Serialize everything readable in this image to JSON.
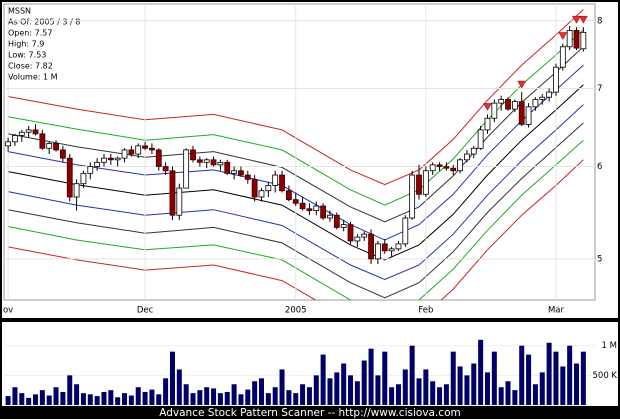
{
  "chart_data": {
    "type": "candlestick",
    "title": "MSSN",
    "info": [
      "As Of: 2005 / 3 / 8",
      "Open: 7.57",
      "High: 7.9",
      "Low: 7.53",
      "Close: 7.82",
      "Volume: 1 M"
    ],
    "footer": "Advance Stock Pattern Scanner -- http://www.cisiova.com",
    "log_scale": true,
    "grid": true,
    "up_color": "#ffffff",
    "down_color": "#8b0000",
    "signal_color": "#e03030",
    "ylim": [
      4.61,
      8.27
    ],
    "yticks": [
      5,
      6,
      7,
      8
    ],
    "xlim": [
      -0.6,
      85.7
    ],
    "xticks": [
      {
        "value": 0,
        "label": "ov"
      },
      {
        "value": 20,
        "label": "Dec"
      },
      {
        "value": 42,
        "label": "2005"
      },
      {
        "value": 61,
        "label": "Feb"
      },
      {
        "value": 80,
        "label": "Mar"
      }
    ],
    "open": [
      6.25,
      6.3,
      6.38,
      6.42,
      6.45,
      6.4,
      6.22,
      6.28,
      6.2,
      6.1,
      5.65,
      5.8,
      5.92,
      6.0,
      6.05,
      6.1,
      6.08,
      6.1,
      6.2,
      6.15,
      6.25,
      6.22,
      6.2,
      6.0,
      5.95,
      5.45,
      5.75,
      6.2,
      6.08,
      6.05,
      6.08,
      6.02,
      6.05,
      5.92,
      5.95,
      5.9,
      5.85,
      5.65,
      5.72,
      5.78,
      5.9,
      5.72,
      5.62,
      5.58,
      5.52,
      5.5,
      5.55,
      5.42,
      5.45,
      5.32,
      5.35,
      5.18,
      5.22,
      5.25,
      5.0,
      5.15,
      5.08,
      5.1,
      5.15,
      5.42,
      5.9,
      5.68,
      5.95,
      6.02,
      6.0,
      5.98,
      5.95,
      6.08,
      6.15,
      6.22,
      6.45,
      6.6,
      6.8,
      6.85,
      6.72,
      6.82,
      6.52,
      6.75,
      6.85,
      6.88,
      6.95,
      7.3,
      7.6,
      7.85,
      7.57
    ],
    "high": [
      6.35,
      6.4,
      6.45,
      6.5,
      6.52,
      6.45,
      6.3,
      6.32,
      6.25,
      6.15,
      5.85,
      5.95,
      6.05,
      6.1,
      6.15,
      6.15,
      6.12,
      6.22,
      6.25,
      6.28,
      6.3,
      6.28,
      6.22,
      6.05,
      6.0,
      5.8,
      6.22,
      6.25,
      6.12,
      6.1,
      6.12,
      6.08,
      6.08,
      6.0,
      6.0,
      5.95,
      5.9,
      5.75,
      5.82,
      5.95,
      5.95,
      5.78,
      5.7,
      5.65,
      5.58,
      5.6,
      5.58,
      5.5,
      5.48,
      5.4,
      5.38,
      5.25,
      5.28,
      5.3,
      5.18,
      5.2,
      5.12,
      5.18,
      5.45,
      5.95,
      6.02,
      6.0,
      6.05,
      6.05,
      6.05,
      6.02,
      6.1,
      6.2,
      6.25,
      6.5,
      6.65,
      6.85,
      6.9,
      6.88,
      6.85,
      6.95,
      6.8,
      6.88,
      6.92,
      7.0,
      7.35,
      7.65,
      7.92,
      7.9,
      7.9
    ],
    "low": [
      6.18,
      6.25,
      6.3,
      6.35,
      6.38,
      6.2,
      6.15,
      6.18,
      6.05,
      5.6,
      5.5,
      5.75,
      5.85,
      5.95,
      6.0,
      6.02,
      6.0,
      6.05,
      6.12,
      6.1,
      6.2,
      6.15,
      5.95,
      5.9,
      5.4,
      5.4,
      5.75,
      6.05,
      6.0,
      5.98,
      6.0,
      5.95,
      5.9,
      5.85,
      5.88,
      5.8,
      5.6,
      5.6,
      5.65,
      5.7,
      5.7,
      5.6,
      5.55,
      5.5,
      5.45,
      5.45,
      5.4,
      5.38,
      5.3,
      5.28,
      5.15,
      5.12,
      5.18,
      4.95,
      4.95,
      5.05,
      5.02,
      5.08,
      5.12,
      5.4,
      5.62,
      5.65,
      5.9,
      5.95,
      5.95,
      5.9,
      5.92,
      6.05,
      6.1,
      6.2,
      6.4,
      6.55,
      6.7,
      6.7,
      6.68,
      6.5,
      6.48,
      6.7,
      6.78,
      6.82,
      6.9,
      7.25,
      7.55,
      7.55,
      7.53
    ],
    "close": [
      6.3,
      6.38,
      6.42,
      6.45,
      6.4,
      6.22,
      6.28,
      6.2,
      6.1,
      5.65,
      5.8,
      5.92,
      6.0,
      6.05,
      6.1,
      6.08,
      6.1,
      6.2,
      6.15,
      6.25,
      6.22,
      6.2,
      6.0,
      5.95,
      5.45,
      5.75,
      6.2,
      6.08,
      6.05,
      6.08,
      6.02,
      6.05,
      5.92,
      5.95,
      5.9,
      5.85,
      5.65,
      5.72,
      5.78,
      5.9,
      5.72,
      5.62,
      5.58,
      5.52,
      5.5,
      5.55,
      5.42,
      5.45,
      5.32,
      5.35,
      5.18,
      5.22,
      5.25,
      5.0,
      5.15,
      5.08,
      5.1,
      5.15,
      5.42,
      5.9,
      5.68,
      5.95,
      6.02,
      6.0,
      5.98,
      5.95,
      6.08,
      6.15,
      6.22,
      6.45,
      6.6,
      6.8,
      6.85,
      6.72,
      6.82,
      6.52,
      6.75,
      6.85,
      6.88,
      6.95,
      7.3,
      7.6,
      7.85,
      7.58,
      7.82
    ],
    "signals": [
      70,
      75,
      81,
      83,
      84
    ],
    "bands": [
      {
        "color": "#cc2222",
        "x": [
          0,
          10,
          20,
          30,
          40,
          50,
          55,
          60,
          65,
          70,
          75,
          80,
          84
        ],
        "values": [
          6.89,
          6.72,
          6.58,
          6.65,
          6.45,
          5.96,
          5.79,
          5.96,
          6.33,
          6.84,
          7.33,
          7.78,
          8.18
        ]
      },
      {
        "color": "#22aa22",
        "x": [
          0,
          10,
          20,
          30,
          40,
          50,
          55,
          60,
          65,
          70,
          75,
          80,
          84
        ],
        "values": [
          6.62,
          6.46,
          6.32,
          6.39,
          6.2,
          5.73,
          5.56,
          5.73,
          6.09,
          6.58,
          7.05,
          7.48,
          7.86
        ]
      },
      {
        "color": "#333333",
        "x": [
          0,
          10,
          20,
          30,
          40,
          50,
          55,
          60,
          65,
          70,
          75,
          80,
          84
        ],
        "values": [
          6.4,
          6.24,
          6.11,
          6.18,
          5.99,
          5.54,
          5.38,
          5.54,
          5.89,
          6.36,
          6.81,
          7.23,
          7.6
        ]
      },
      {
        "color": "#2233aa",
        "x": [
          0,
          10,
          20,
          30,
          40,
          50,
          55,
          60,
          65,
          70,
          75,
          80,
          84
        ],
        "values": [
          6.18,
          6.02,
          5.9,
          5.96,
          5.78,
          5.35,
          5.19,
          5.35,
          5.68,
          6.14,
          6.57,
          6.98,
          7.33
        ]
      },
      {
        "color": "#000000",
        "x": [
          0,
          10,
          20,
          30,
          40,
          50,
          55,
          60,
          65,
          70,
          75,
          80,
          84
        ],
        "values": [
          5.94,
          5.79,
          5.67,
          5.73,
          5.56,
          5.14,
          4.99,
          5.14,
          5.46,
          5.9,
          6.32,
          6.71,
          7.05
        ]
      },
      {
        "color": "#2233aa",
        "x": [
          0,
          10,
          20,
          30,
          40,
          50,
          55,
          60,
          65,
          70,
          75,
          80,
          84
        ],
        "values": [
          5.71,
          5.56,
          5.45,
          5.51,
          5.34,
          4.94,
          4.8,
          4.94,
          5.25,
          5.67,
          6.07,
          6.45,
          6.78
        ]
      },
      {
        "color": "#333333",
        "x": [
          0,
          10,
          20,
          30,
          40,
          50,
          55,
          60,
          65,
          70,
          75,
          80,
          84
        ],
        "values": [
          5.51,
          5.37,
          5.26,
          5.32,
          5.16,
          4.77,
          4.63,
          4.77,
          5.07,
          5.48,
          5.86,
          6.23,
          6.54
        ]
      },
      {
        "color": "#22aa22",
        "x": [
          0,
          10,
          20,
          30,
          40,
          50,
          55,
          60,
          65,
          70,
          75,
          80,
          84
        ],
        "values": [
          5.33,
          5.19,
          5.09,
          5.14,
          4.99,
          4.61,
          4.48,
          4.61,
          4.9,
          5.29,
          5.67,
          6.02,
          6.32
        ]
      },
      {
        "color": "#cc2222",
        "x": [
          0,
          10,
          20,
          30,
          40,
          50,
          55,
          60,
          65,
          70,
          75,
          80,
          84
        ],
        "values": [
          5.12,
          4.99,
          4.89,
          4.94,
          4.79,
          4.43,
          4.3,
          4.43,
          4.71,
          5.09,
          5.45,
          5.78,
          6.08
        ]
      }
    ],
    "volume": {
      "color": "#000066",
      "ylim": [
        0,
        1400000
      ],
      "yticks": [
        {
          "value": 500000,
          "label": "500 K"
        },
        {
          "value": 1000000,
          "label": "1 M"
        }
      ],
      "values": [
        150000,
        300000,
        200000,
        120000,
        180000,
        250000,
        160000,
        300000,
        220000,
        500000,
        350000,
        200000,
        180000,
        150000,
        220000,
        250000,
        130000,
        200000,
        160000,
        300000,
        220000,
        260000,
        180000,
        450000,
        900000,
        600000,
        350000,
        200000,
        250000,
        300000,
        280000,
        200000,
        220000,
        350000,
        180000,
        260000,
        400000,
        450000,
        200000,
        300000,
        600000,
        250000,
        200000,
        350000,
        300000,
        500000,
        850000,
        450000,
        550000,
        700000,
        500000,
        400000,
        750000,
        950000,
        500000,
        900000,
        300000,
        350000,
        600000,
        1000000,
        450000,
        600000,
        400000,
        300000,
        350000,
        900000,
        650000,
        500000,
        700000,
        1100000,
        550000,
        900000,
        300000,
        400000,
        250000,
        1000000,
        850000,
        350000,
        550000,
        1050000,
        900000,
        650000,
        1000000,
        700000,
        900000
      ]
    }
  }
}
